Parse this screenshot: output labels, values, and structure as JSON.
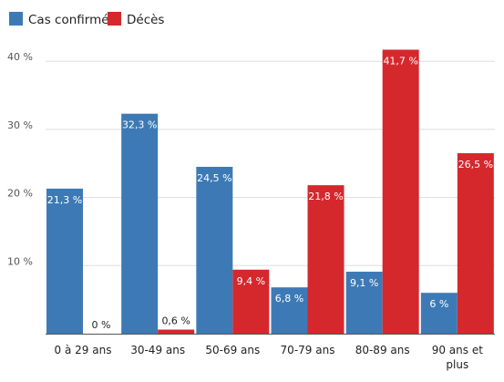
{
  "chart_data": {
    "type": "bar",
    "categories": [
      "0 à 29 ans",
      "30-49 ans",
      "50-69 ans",
      "70-79 ans",
      "80-89 ans",
      "90 ans et plus"
    ],
    "series": [
      {
        "name": "Cas confirmés",
        "color": "#3d7ab5",
        "values": [
          21.3,
          32.3,
          24.5,
          6.8,
          9.1,
          6.0
        ],
        "labels": [
          "21,3 %",
          "32,3 %",
          "24,5 %",
          "6,8 %",
          "9,1 %",
          "6 %"
        ]
      },
      {
        "name": "Décès",
        "color": "#d4282d",
        "values": [
          0,
          0.6,
          9.4,
          21.8,
          41.7,
          26.5
        ],
        "labels": [
          "0 %",
          "0,6 %",
          "9,4 %",
          "21,8 %",
          "41,7 %",
          "26,5 %"
        ]
      }
    ],
    "yticks": [
      {
        "value": 10,
        "label": "10 %"
      },
      {
        "value": 20,
        "label": "20 %"
      },
      {
        "value": 30,
        "label": "30 %"
      },
      {
        "value": 40,
        "label": "40 %"
      }
    ],
    "ylim": [
      0,
      40
    ],
    "grid": true,
    "legend_position": "top-left",
    "title": "",
    "xlabel": "",
    "ylabel": ""
  }
}
